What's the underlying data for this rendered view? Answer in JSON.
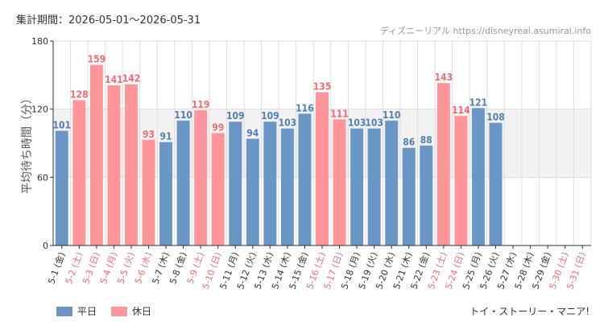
{
  "header": {
    "period": "集計期間：2026-05-01～2026-05-31",
    "source": "ディズニーリアル https://disneyreal.asumirai.info"
  },
  "footer": {
    "attraction": "トイ・ストーリー・マニア!"
  },
  "colors": {
    "weekday": "#6a96c6",
    "holiday": "#ff9599",
    "weekday_text": "#4f7fb5",
    "holiday_text": "#f26a72",
    "band": "#f2f2f2",
    "grid": "#dddddd",
    "axis": "#333333"
  },
  "chart_data": {
    "type": "bar",
    "ylabel": "平均待ち時間（分）",
    "ylim": [
      0,
      180
    ],
    "yticks": [
      0,
      60,
      120,
      180
    ],
    "y_tick_labels": [
      "0",
      "60",
      "120",
      "180"
    ],
    "band_range": [
      60,
      120
    ],
    "grid": true,
    "legend_position": "bottom-left",
    "categories": [
      "5-1 (金)",
      "5-2 (土)",
      "5-3 (日)",
      "5-4 (月)",
      "5-5 (火)",
      "5-6 (水)",
      "5-7 (木)",
      "5-8 (金)",
      "5-9 (土)",
      "5-10 (日)",
      "5-11 (月)",
      "5-12 (火)",
      "5-13 (水)",
      "5-14 (木)",
      "5-15 (金)",
      "5-16 (土)",
      "5-17 (日)",
      "5-18 (月)",
      "5-19 (火)",
      "5-20 (水)",
      "5-21 (木)",
      "5-22 (金)",
      "5-23 (土)",
      "5-24 (日)",
      "5-25 (月)",
      "5-26 (火)",
      "5-27 (水)",
      "5-28 (木)",
      "5-29 (金)",
      "5-30 (土)",
      "5-31 (日)"
    ],
    "day_types": [
      "weekday",
      "holiday",
      "holiday",
      "holiday",
      "holiday",
      "holiday",
      "weekday",
      "weekday",
      "holiday",
      "holiday",
      "weekday",
      "weekday",
      "weekday",
      "weekday",
      "weekday",
      "holiday",
      "holiday",
      "weekday",
      "weekday",
      "weekday",
      "weekday",
      "weekday",
      "holiday",
      "holiday",
      "weekday",
      "weekday",
      "weekday",
      "weekday",
      "weekday",
      "holiday",
      "holiday"
    ],
    "values": [
      101,
      128,
      159,
      141,
      142,
      93,
      91,
      110,
      119,
      99,
      109,
      94,
      109,
      103,
      116,
      135,
      111,
      103,
      103,
      110,
      86,
      88,
      143,
      114,
      121,
      108,
      null,
      null,
      null,
      null,
      null
    ],
    "series": [
      {
        "name": "平日",
        "key": "weekday"
      },
      {
        "name": "休日",
        "key": "holiday"
      }
    ]
  }
}
